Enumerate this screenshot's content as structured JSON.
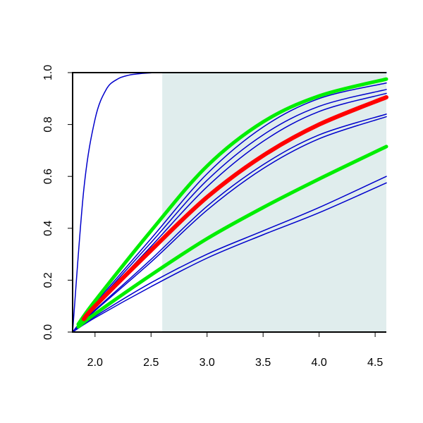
{
  "chart_data": {
    "type": "line",
    "title": "",
    "xlabel": "",
    "ylabel": "",
    "xlim": [
      1.8,
      4.6
    ],
    "ylim": [
      0,
      1
    ],
    "x_ticks": [
      "2.0",
      "2.5",
      "3.0",
      "3.5",
      "4.0",
      "4.5"
    ],
    "y_ticks": [
      "0.0",
      "0.2",
      "0.4",
      "0.6",
      "0.8",
      "1.0"
    ],
    "shaded_region": {
      "x_from": 2.6,
      "x_to": 4.6,
      "color": "#e0eded"
    },
    "legend": "none",
    "grid": false,
    "series": [
      {
        "color": "#0000cc",
        "width": 1.5,
        "x": [
          1.8,
          1.9,
          2.0,
          2.1,
          2.2,
          2.3,
          2.4,
          2.5,
          2.6,
          4.6
        ],
        "values": [
          0.0,
          0.55,
          0.82,
          0.935,
          0.975,
          0.99,
          0.996,
          0.999,
          1.0,
          1.0
        ]
      },
      {
        "color": "#0000cc",
        "width": 1.5,
        "x": [
          1.8,
          2.0,
          2.5,
          3.0,
          3.5,
          4.0,
          4.6
        ],
        "values": [
          0.0,
          0.11,
          0.36,
          0.61,
          0.79,
          0.9,
          0.96
        ]
      },
      {
        "color": "#0000cc",
        "width": 1.5,
        "x": [
          1.8,
          2.0,
          2.5,
          3.0,
          3.5,
          4.0,
          4.6
        ],
        "values": [
          0.0,
          0.105,
          0.345,
          0.585,
          0.76,
          0.87,
          0.935
        ]
      },
      {
        "color": "#0000cc",
        "width": 1.5,
        "x": [
          1.8,
          2.0,
          2.5,
          3.0,
          3.5,
          4.0,
          4.6
        ],
        "values": [
          0.0,
          0.1,
          0.33,
          0.56,
          0.735,
          0.85,
          0.92
        ]
      },
      {
        "color": "#0000cc",
        "width": 1.5,
        "x": [
          1.8,
          2.0,
          2.5,
          3.0,
          3.5,
          4.0,
          4.6
        ],
        "values": [
          0.0,
          0.085,
          0.28,
          0.485,
          0.645,
          0.76,
          0.84
        ]
      },
      {
        "color": "#0000cc",
        "width": 1.5,
        "x": [
          1.8,
          2.0,
          2.5,
          3.0,
          3.5,
          4.0,
          4.6
        ],
        "values": [
          0.0,
          0.082,
          0.27,
          0.47,
          0.63,
          0.745,
          0.83
        ]
      },
      {
        "color": "#0000cc",
        "width": 1.5,
        "x": [
          1.8,
          2.0,
          2.5,
          3.0,
          3.5,
          4.0,
          4.6
        ],
        "values": [
          0.0,
          0.06,
          0.19,
          0.3,
          0.39,
          0.48,
          0.6
        ]
      },
      {
        "color": "#0000cc",
        "width": 1.5,
        "x": [
          1.8,
          2.0,
          2.5,
          3.0,
          3.5,
          4.0,
          4.6
        ],
        "values": [
          0.0,
          0.055,
          0.175,
          0.285,
          0.375,
          0.46,
          0.575
        ]
      },
      {
        "color": "#00ee00",
        "width": 5,
        "x": [
          1.85,
          2.0,
          2.5,
          3.0,
          3.5,
          4.0,
          4.6
        ],
        "values": [
          0.03,
          0.12,
          0.39,
          0.64,
          0.81,
          0.91,
          0.975
        ]
      },
      {
        "color": "#00ee00",
        "width": 5,
        "x": [
          1.85,
          2.0,
          2.5,
          3.0,
          3.5,
          4.0,
          4.6
        ],
        "values": [
          0.02,
          0.07,
          0.22,
          0.36,
          0.48,
          0.59,
          0.715
        ]
      },
      {
        "color": "#ff0000",
        "width": 6,
        "x": [
          1.9,
          2.0,
          2.5,
          3.0,
          3.5,
          4.0,
          4.6
        ],
        "values": [
          0.05,
          0.1,
          0.315,
          0.52,
          0.68,
          0.8,
          0.905
        ]
      }
    ]
  }
}
